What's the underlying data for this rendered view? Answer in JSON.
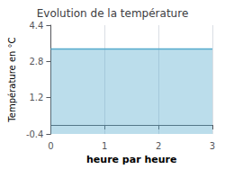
{
  "chart_data": {
    "type": "line",
    "title": "Evolution de la température",
    "xlabel": "heure par heure",
    "ylabel": "Température en °C",
    "x": [
      0,
      3
    ],
    "values": [
      3.35,
      3.35
    ],
    "color": "#55aacc",
    "xlim": [
      0,
      3
    ],
    "ylim": [
      -0.4,
      4.4
    ],
    "xticks": [
      0,
      1,
      2,
      3
    ],
    "yticks": [
      -0.4,
      1.2,
      2.8,
      4.4
    ],
    "grid": "x"
  }
}
